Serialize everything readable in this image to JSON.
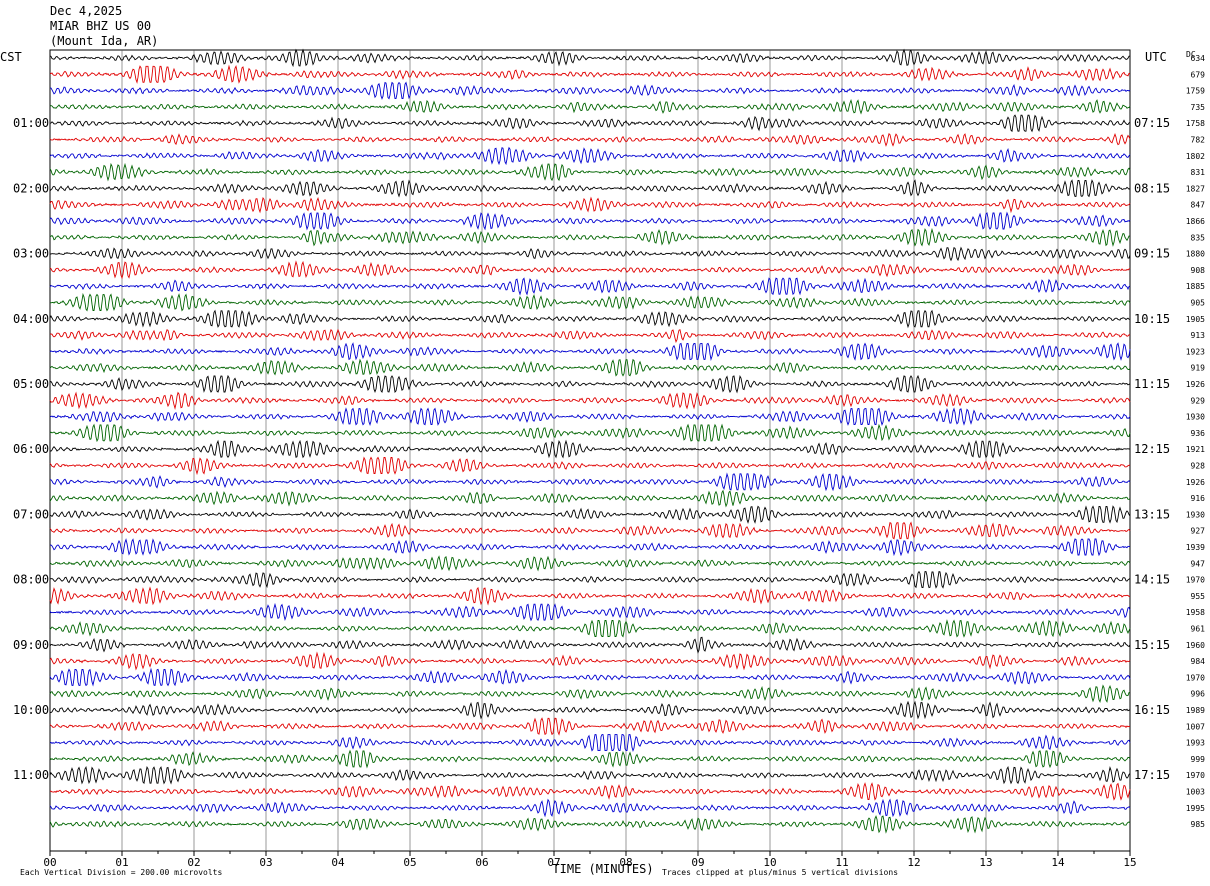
{
  "header": {
    "date": "Dec 4,2025",
    "station": "MIAR BHZ US 00",
    "location": "(Mount Ida, AR)"
  },
  "chart_data": {
    "type": "line",
    "subtype": "helicorder",
    "left_timezone_label": "CST",
    "right_timezone_label": "UTC",
    "dc_label": "DC",
    "xlabel": "TIME (MINUTES)",
    "xlim": [
      0,
      15
    ],
    "x_ticks": [
      "00",
      "01",
      "02",
      "03",
      "04",
      "05",
      "06",
      "07",
      "08",
      "09",
      "10",
      "11",
      "12",
      "13",
      "14",
      "15"
    ],
    "left_hour_labels": [
      "01:00",
      "02:00",
      "03:00",
      "04:00",
      "05:00",
      "06:00",
      "07:00",
      "08:00",
      "09:00",
      "10:00",
      "11:00"
    ],
    "right_hour_labels": [
      "07:15",
      "08:15",
      "09:15",
      "10:15",
      "11:15",
      "12:15",
      "13:15",
      "14:15",
      "15:15",
      "16:15",
      "17:15"
    ],
    "trace_colors": [
      "#000000",
      "#e00000",
      "#0000d0",
      "#006400"
    ],
    "dc_offsets": [
      "634",
      "679",
      "1759",
      "735",
      "1758",
      "782",
      "1802",
      "831",
      "1827",
      "847",
      "1866",
      "835",
      "1880",
      "908",
      "1885",
      "905",
      "1905",
      "913",
      "1923",
      "919",
      "1926",
      "929",
      "1930",
      "936",
      "1921",
      "928",
      "1926",
      "916",
      "1930",
      "927",
      "1939",
      "947",
      "1970",
      "955",
      "1958",
      "961",
      "1960",
      "984",
      "1970",
      "996",
      "1989",
      "1007",
      "1993",
      "999",
      "1970",
      "1003",
      "1995",
      "985"
    ],
    "footer_left": "Each Vertical Division =  200.00 microvolts",
    "footer_right": "Traces clipped at plus/minus 5 vertical divisions",
    "grid": "vertical minute lines"
  }
}
